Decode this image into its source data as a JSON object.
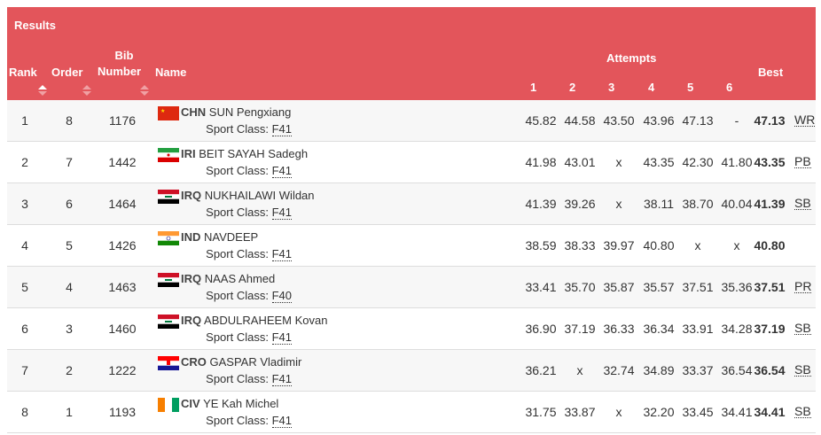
{
  "title": "Results",
  "headers": {
    "rank": "Rank",
    "order": "Order",
    "bib1": "Bib",
    "bib2": "Number",
    "name": "Name",
    "attempts": "Attempts",
    "a": [
      "1",
      "2",
      "3",
      "4",
      "5",
      "6"
    ],
    "best": "Best"
  },
  "sport_class_label": "Sport Class:",
  "rows": [
    {
      "rank": "1",
      "order": "8",
      "bib": "1176",
      "country": "CHN",
      "name": "SUN Pengxiang",
      "class": "F41",
      "attempts": [
        "45.82",
        "44.58",
        "43.50",
        "43.96",
        "47.13",
        "-"
      ],
      "best": "47.13",
      "record": "WR",
      "flag": "chn"
    },
    {
      "rank": "2",
      "order": "7",
      "bib": "1442",
      "country": "IRI",
      "name": "BEIT SAYAH Sadegh",
      "class": "F41",
      "attempts": [
        "41.98",
        "43.01",
        "x",
        "43.35",
        "42.30",
        "41.80"
      ],
      "best": "43.35",
      "record": "PB",
      "flag": "iri"
    },
    {
      "rank": "3",
      "order": "6",
      "bib": "1464",
      "country": "IRQ",
      "name": "NUKHAILAWI Wildan",
      "class": "F41",
      "attempts": [
        "41.39",
        "39.26",
        "x",
        "38.11",
        "38.70",
        "40.04"
      ],
      "best": "41.39",
      "record": "SB",
      "flag": "irq"
    },
    {
      "rank": "4",
      "order": "5",
      "bib": "1426",
      "country": "IND",
      "name": "NAVDEEP",
      "class": "F41",
      "attempts": [
        "38.59",
        "38.33",
        "39.97",
        "40.80",
        "x",
        "x"
      ],
      "best": "40.80",
      "record": "",
      "flag": "ind"
    },
    {
      "rank": "5",
      "order": "4",
      "bib": "1463",
      "country": "IRQ",
      "name": "NAAS Ahmed",
      "class": "F40",
      "attempts": [
        "33.41",
        "35.70",
        "35.87",
        "35.57",
        "37.51",
        "35.36"
      ],
      "best": "37.51",
      "record": "PR",
      "flag": "irq"
    },
    {
      "rank": "6",
      "order": "3",
      "bib": "1460",
      "country": "IRQ",
      "name": "ABDULRAHEEM Kovan",
      "class": "F41",
      "attempts": [
        "36.90",
        "37.19",
        "36.33",
        "36.34",
        "33.91",
        "34.28"
      ],
      "best": "37.19",
      "record": "SB",
      "flag": "irq"
    },
    {
      "rank": "7",
      "order": "2",
      "bib": "1222",
      "country": "CRO",
      "name": "GASPAR Vladimir",
      "class": "F41",
      "attempts": [
        "36.21",
        "x",
        "32.74",
        "34.89",
        "33.37",
        "36.54"
      ],
      "best": "36.54",
      "record": "SB",
      "flag": "cro"
    },
    {
      "rank": "8",
      "order": "1",
      "bib": "1193",
      "country": "CIV",
      "name": "YE Kah Michel",
      "class": "F41",
      "attempts": [
        "31.75",
        "33.87",
        "x",
        "32.20",
        "33.45",
        "34.41"
      ],
      "best": "34.41",
      "record": "SB",
      "flag": "civ"
    }
  ]
}
